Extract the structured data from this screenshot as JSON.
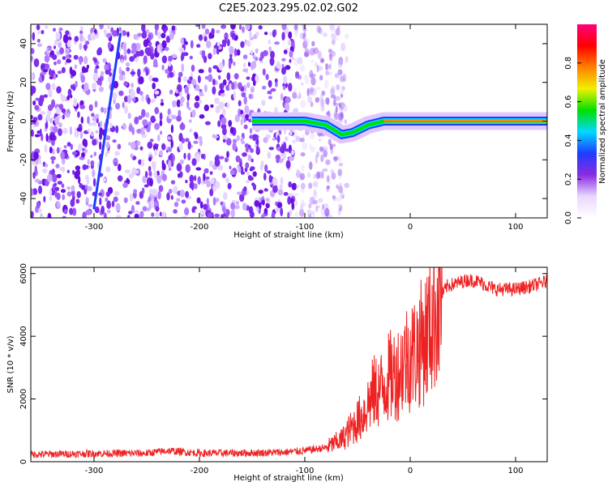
{
  "title": "C2E5.2023.295.02.02.G02",
  "chart_data": [
    {
      "type": "heatmap",
      "xlabel": "Height of straight line (km)",
      "ylabel": "Frequency (Hz)",
      "xlim": [
        -360,
        130
      ],
      "ylim": [
        -50,
        50
      ],
      "xticks": [
        -300,
        -200,
        -100,
        0,
        100
      ],
      "yticks": [
        -40,
        -20,
        0,
        20,
        40
      ],
      "colorbar": {
        "label": "Normalized spectral amplitude",
        "range": [
          0,
          1
        ],
        "ticks": [
          "0.0",
          "0.2",
          "0.4",
          "0.6",
          "0.8"
        ],
        "colormap": [
          "#ffffff",
          "#e8d8ff",
          "#8a2be2",
          "#1e3cff",
          "#00d9ff",
          "#00e000",
          "#f0f000",
          "#ff8000",
          "#ff0000",
          "#ff0080"
        ]
      },
      "features": {
        "noise_region_x": [
          -360,
          -100
        ],
        "tone_start_x": -150,
        "tone_track": [
          [
            -150,
            0
          ],
          [
            -120,
            0
          ],
          [
            -100,
            0
          ],
          [
            -80,
            -2
          ],
          [
            -65,
            -7
          ],
          [
            -55,
            -6
          ],
          [
            -40,
            -2
          ],
          [
            -25,
            0
          ],
          [
            0,
            0
          ],
          [
            130,
            0
          ]
        ],
        "diagonal_streak": [
          [
            -300,
            -45
          ],
          [
            -275,
            45
          ]
        ]
      }
    },
    {
      "type": "line",
      "xlabel": "Height of straight line (km)",
      "ylabel": "SNR (10 * v/v)",
      "xlim": [
        -360,
        130
      ],
      "ylim": [
        0,
        6200
      ],
      "xticks": [
        -300,
        -200,
        -100,
        0,
        100
      ],
      "yticks": [
        0,
        2000,
        4000,
        6000
      ],
      "series": [
        {
          "color": "#ee2222",
          "values": [
            [
              -360,
              230
            ],
            [
              -300,
              260
            ],
            [
              -250,
              270
            ],
            [
              -230,
              350
            ],
            [
              -200,
              270
            ],
            [
              -150,
              280
            ],
            [
              -120,
              300
            ],
            [
              -100,
              350
            ],
            [
              -80,
              450
            ],
            [
              -65,
              700
            ],
            [
              -55,
              1100
            ],
            [
              -45,
              1500
            ],
            [
              -35,
              2200
            ],
            [
              -28,
              2300
            ],
            [
              -20,
              2700
            ],
            [
              -10,
              2900
            ],
            [
              -5,
              3300
            ],
            [
              5,
              3500
            ],
            [
              15,
              4000
            ],
            [
              25,
              5000
            ],
            [
              35,
              5600
            ],
            [
              45,
              5700
            ],
            [
              55,
              5800
            ],
            [
              65,
              5750
            ],
            [
              80,
              5500
            ],
            [
              100,
              5500
            ],
            [
              115,
              5600
            ],
            [
              130,
              5750
            ]
          ]
        }
      ]
    }
  ]
}
